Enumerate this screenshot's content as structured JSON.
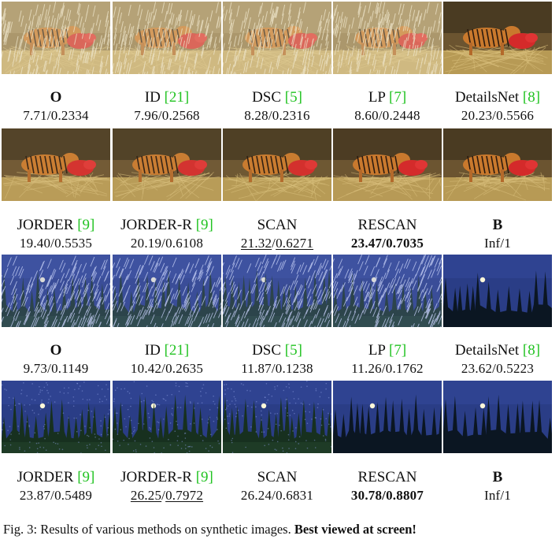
{
  "rows": [
    {
      "scene": "tiger",
      "rainy": [
        true,
        true,
        true,
        true,
        false
      ],
      "labels": [
        {
          "name": "O",
          "ref": "",
          "score_a": "7.71",
          "score_b": "0.2334",
          "style": "bold-name"
        },
        {
          "name": "ID ",
          "ref": "[21]",
          "score_a": "7.96",
          "score_b": "0.2568",
          "style": ""
        },
        {
          "name": "DSC ",
          "ref": "[5]",
          "score_a": "8.28",
          "score_b": "0.2316",
          "style": ""
        },
        {
          "name": "LP ",
          "ref": "[7]",
          "score_a": "8.60",
          "score_b": "0.2448",
          "style": ""
        },
        {
          "name": "DetailsNet ",
          "ref": "[8]",
          "score_a": "20.23",
          "score_b": "0.5566",
          "style": ""
        }
      ]
    },
    {
      "scene": "tiger-derained",
      "labels": [
        {
          "name": "JORDER ",
          "ref": "[9]",
          "score_a": "19.40",
          "score_b": "0.5535",
          "style": ""
        },
        {
          "name": "JORDER-R ",
          "ref": "[9]",
          "score_a": "20.19",
          "score_b": "0.6108",
          "style": ""
        },
        {
          "name": "SCAN",
          "ref": "",
          "score_a": "21.32",
          "score_b": "0.6271",
          "style": "underline"
        },
        {
          "name": "RESCAN",
          "ref": "",
          "score_a": "23.47",
          "score_b": "0.7035",
          "style": "bold-score"
        },
        {
          "name": "B",
          "ref": "",
          "score_a": "Inf",
          "score_b": "1",
          "style": "bold-name"
        }
      ]
    },
    {
      "scene": "night",
      "labels": [
        {
          "name": "O",
          "ref": "",
          "score_a": "9.73",
          "score_b": "0.1149",
          "style": "bold-name"
        },
        {
          "name": "ID ",
          "ref": "[21]",
          "score_a": "10.42",
          "score_b": "0.2635",
          "style": ""
        },
        {
          "name": "DSC ",
          "ref": "[5]",
          "score_a": "11.87",
          "score_b": "0.1238",
          "style": ""
        },
        {
          "name": "LP ",
          "ref": "[7]",
          "score_a": "11.26",
          "score_b": "0.1762",
          "style": ""
        },
        {
          "name": "DetailsNet ",
          "ref": "[8]",
          "score_a": "23.62",
          "score_b": "0.5223",
          "style": ""
        }
      ]
    },
    {
      "scene": "night-derained",
      "labels": [
        {
          "name": "JORDER ",
          "ref": "[9]",
          "score_a": "23.87",
          "score_b": "0.5489",
          "style": ""
        },
        {
          "name": "JORDER-R ",
          "ref": "[9]",
          "score_a": "26.25",
          "score_b": "0.7972",
          "style": "underline"
        },
        {
          "name": "SCAN",
          "ref": "",
          "score_a": "26.24",
          "score_b": "0.6831",
          "style": ""
        },
        {
          "name": "RESCAN",
          "ref": "",
          "score_a": "30.78",
          "score_b": "0.8807",
          "style": "bold-score"
        },
        {
          "name": "B",
          "ref": "",
          "score_a": "Inf",
          "score_b": "1",
          "style": "bold-name"
        }
      ]
    }
  ],
  "caption": {
    "prefix": "Fig. 3: Results of various methods on synthetic images. ",
    "bold": "Best viewed at screen!"
  },
  "colors": {
    "reference": "#22c322",
    "tiger_grass": "#b79a55",
    "night_sky": "#2a3d86"
  }
}
